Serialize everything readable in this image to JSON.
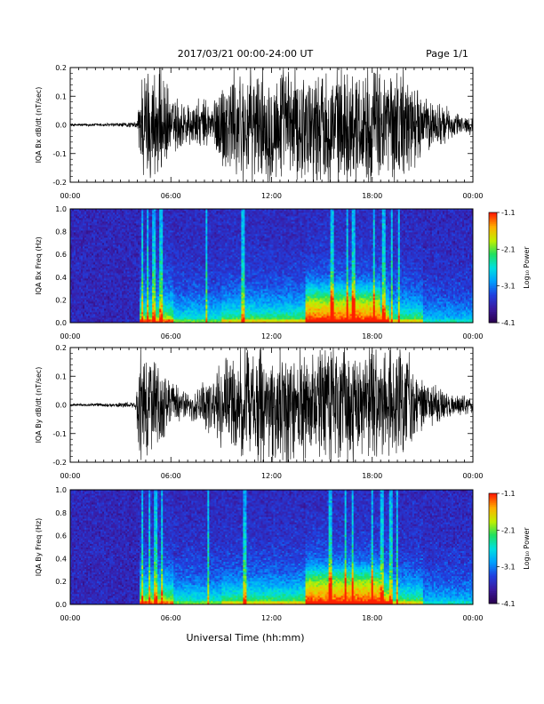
{
  "header": {
    "title": "2017/03/21  00:00-24:00 UT",
    "page": "Page 1/1"
  },
  "xlabel": "Universal Time (hh:mm)",
  "x_ticks": [
    "00:00",
    "06:00",
    "12:00",
    "18:00",
    "00:00"
  ],
  "chart_data": [
    {
      "type": "line",
      "ylabel": "IQA Bx dB/dt (nT/sec)",
      "ylim": [
        -0.2,
        0.2
      ],
      "y_ticks": [
        "0.2",
        "0.1",
        "0.0",
        "-0.1",
        "-0.2"
      ],
      "x_range_hours": [
        0,
        24
      ],
      "envelope": {
        "x": [
          0,
          2,
          4,
          4.2,
          4.5,
          5,
          5.5,
          6,
          6.5,
          7,
          7.5,
          8,
          8.5,
          9,
          9.5,
          10,
          11,
          12,
          13,
          14,
          15,
          16,
          17,
          18,
          19,
          20,
          21,
          22,
          23,
          24
        ],
        "amplitude": [
          0.005,
          0.006,
          0.01,
          0.2,
          0.2,
          0.2,
          0.2,
          0.09,
          0.1,
          0.08,
          0.08,
          0.09,
          0.08,
          0.16,
          0.2,
          0.2,
          0.2,
          0.2,
          0.2,
          0.2,
          0.2,
          0.2,
          0.2,
          0.2,
          0.2,
          0.2,
          0.1,
          0.08,
          0.04,
          0.03
        ]
      }
    },
    {
      "type": "heatmap",
      "ylabel": "IQA Bx Freq (Hz)",
      "ylim": [
        0.0,
        1.0
      ],
      "y_ticks": [
        "1.0",
        "0.8",
        "0.6",
        "0.4",
        "0.2",
        "0.0"
      ],
      "colorbar": {
        "label": "Log₁₀ Power",
        "ticks": [
          "-1.1",
          "-2.1",
          "-3.1",
          "-4.1"
        ],
        "range": [
          -4.1,
          -1.1
        ]
      }
    },
    {
      "type": "line",
      "ylabel": "IQA By dB/dt (nT/sec)",
      "ylim": [
        -0.2,
        0.2
      ],
      "y_ticks": [
        "0.2",
        "0.1",
        "0.0",
        "-0.1",
        "-0.2"
      ],
      "x_range_hours": [
        0,
        24
      ],
      "envelope": {
        "x": [
          0,
          2,
          3.9,
          4.1,
          4.5,
          5,
          5.5,
          6,
          6.5,
          7,
          7.5,
          8,
          8.5,
          9,
          9.5,
          10,
          11,
          12,
          13,
          14,
          15,
          16,
          17,
          18,
          19,
          20,
          21,
          22,
          23,
          24
        ],
        "amplitude": [
          0.005,
          0.006,
          0.01,
          0.2,
          0.2,
          0.2,
          0.12,
          0.1,
          0.06,
          0.05,
          0.06,
          0.1,
          0.09,
          0.16,
          0.17,
          0.18,
          0.2,
          0.2,
          0.2,
          0.2,
          0.2,
          0.2,
          0.2,
          0.2,
          0.2,
          0.2,
          0.08,
          0.06,
          0.04,
          0.03
        ]
      }
    },
    {
      "type": "heatmap",
      "ylabel": "IQA By Freq (Hz)",
      "ylim": [
        0.0,
        1.0
      ],
      "y_ticks": [
        "1.0",
        "0.8",
        "0.6",
        "0.4",
        "0.2",
        "0.0"
      ],
      "colorbar": {
        "label": "Log₁₀ Power",
        "ticks": [
          "-1.1",
          "-2.1",
          "-3.1",
          "-4.1"
        ],
        "range": [
          -4.1,
          -1.1
        ]
      }
    }
  ],
  "colors": {
    "trace": "#000000",
    "colormap": [
      "#2a0050",
      "#3a1aa0",
      "#2040e0",
      "#00a0ff",
      "#00e0e0",
      "#20e060",
      "#c0f000",
      "#ffb000",
      "#ff2000"
    ]
  }
}
